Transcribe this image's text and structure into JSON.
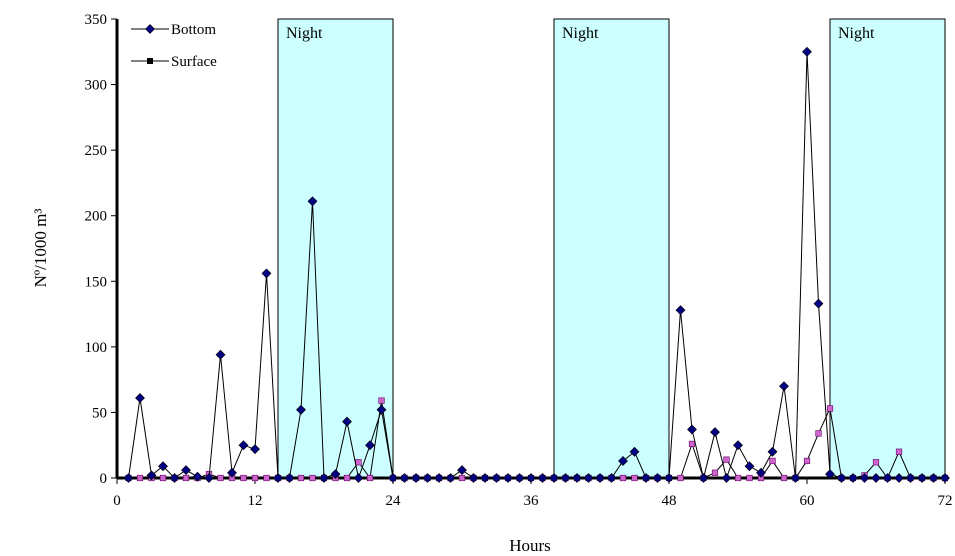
{
  "chart_data": {
    "type": "line",
    "title": "",
    "xlabel": "Hours",
    "ylabel": "Nº/1000 m³",
    "xlim": [
      0,
      72
    ],
    "ylim": [
      0,
      350
    ],
    "x_ticks": [
      0,
      12,
      24,
      36,
      48,
      60,
      72
    ],
    "y_ticks": [
      0,
      50,
      100,
      150,
      200,
      250,
      300,
      350
    ],
    "grid": false,
    "legend": "top-left",
    "night_periods": [
      {
        "label": "Night",
        "start": 14,
        "end": 24
      },
      {
        "label": "Night",
        "start": 38,
        "end": 48
      },
      {
        "label": "Night",
        "start": 62,
        "end": 72
      }
    ],
    "series": [
      {
        "name": "Bottom",
        "color": "#000080",
        "marker": "diamond",
        "x": [
          1,
          2,
          3,
          4,
          5,
          6,
          7,
          8,
          9,
          10,
          11,
          12,
          13,
          14,
          15,
          16,
          17,
          18,
          19,
          20,
          21,
          22,
          23,
          24,
          25,
          26,
          27,
          28,
          29,
          30,
          31,
          32,
          33,
          34,
          35,
          36,
          37,
          38,
          39,
          40,
          41,
          42,
          43,
          44,
          45,
          46,
          47,
          48,
          49,
          50,
          51,
          52,
          53,
          54,
          55,
          56,
          57,
          58,
          59,
          60,
          61,
          62,
          63,
          64,
          65,
          66,
          67,
          68,
          69,
          70,
          71,
          72
        ],
        "y": [
          0,
          61,
          2,
          9,
          0,
          6,
          1,
          0,
          94,
          4,
          25,
          22,
          156,
          0,
          0,
          52,
          211,
          0,
          3,
          43,
          0,
          25,
          52,
          0,
          0,
          0,
          0,
          0,
          0,
          6,
          0,
          0,
          0,
          0,
          0,
          0,
          0,
          0,
          0,
          0,
          0,
          0,
          0,
          13,
          20,
          0,
          0,
          0,
          128,
          37,
          0,
          35,
          0,
          25,
          9,
          4,
          20,
          70,
          0,
          325,
          133,
          3,
          0,
          0,
          0,
          0,
          0,
          0,
          0,
          0,
          0,
          0
        ]
      },
      {
        "name": "Surface",
        "color": "#cc66cc",
        "marker": "square",
        "x": [
          1,
          2,
          3,
          4,
          5,
          6,
          7,
          8,
          9,
          10,
          11,
          12,
          13,
          14,
          15,
          16,
          17,
          18,
          19,
          20,
          21,
          22,
          23,
          24,
          25,
          26,
          27,
          28,
          29,
          30,
          31,
          32,
          33,
          34,
          35,
          36,
          37,
          38,
          39,
          40,
          41,
          42,
          43,
          44,
          45,
          46,
          47,
          48,
          49,
          50,
          51,
          52,
          53,
          54,
          55,
          56,
          57,
          58,
          59,
          60,
          61,
          62,
          63,
          64,
          65,
          66,
          67,
          68,
          69,
          70,
          71,
          72
        ],
        "y": [
          0,
          0,
          0,
          0,
          0,
          0,
          0,
          3,
          0,
          0,
          0,
          0,
          0,
          0,
          0,
          0,
          0,
          0,
          0,
          0,
          12,
          0,
          59,
          0,
          0,
          0,
          0,
          0,
          0,
          0,
          0,
          0,
          0,
          0,
          0,
          0,
          0,
          0,
          0,
          0,
          0,
          0,
          0,
          0,
          0,
          0,
          0,
          0,
          0,
          26,
          0,
          4,
          14,
          0,
          0,
          0,
          13,
          0,
          0,
          13,
          34,
          53,
          0,
          0,
          2,
          12,
          0,
          20,
          0,
          0,
          0,
          0
        ]
      }
    ]
  }
}
